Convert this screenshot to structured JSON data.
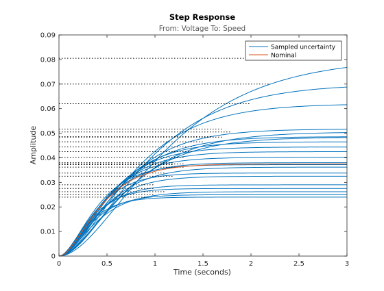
{
  "chart_data": {
    "type": "line",
    "title": "Step Response",
    "subtitle": "From: Voltage  To: Speed",
    "xlabel": "Time (seconds)",
    "ylabel": "Amplitude",
    "xlim": [
      0,
      3
    ],
    "ylim": [
      0,
      0.09
    ],
    "xticks": [
      "0",
      "0.5",
      "1",
      "1.5",
      "2",
      "2.5",
      "3"
    ],
    "yticks": [
      "0",
      "0.01",
      "0.02",
      "0.03",
      "0.04",
      "0.05",
      "0.06",
      "0.07",
      "0.08",
      "0.09"
    ],
    "grid": false,
    "legend_position": "top-right",
    "legend": [
      "Sampled uncertainty",
      "Nominal"
    ],
    "colors": {
      "sampled": "#0072BD",
      "nominal": "#D95319",
      "axis": "#262626",
      "steady_state_guide": "#000000"
    },
    "series": [
      {
        "name": "Sampled uncertainty",
        "responses": [
          {
            "final": 0.0805,
            "tau": 0.62,
            "settle_end": 2.5
          },
          {
            "final": 0.07,
            "tau": 0.5,
            "settle_end": 2.2
          },
          {
            "final": 0.062,
            "tau": 0.42,
            "settle_end": 2.0
          },
          {
            "final": 0.0517,
            "tau": 0.35,
            "settle_end": 1.7
          },
          {
            "final": 0.0505,
            "tau": 0.4,
            "settle_end": 1.8
          },
          {
            "final": 0.0486,
            "tau": 0.33,
            "settle_end": 1.6
          },
          {
            "final": 0.0484,
            "tau": 0.38,
            "settle_end": 1.7
          },
          {
            "final": 0.0465,
            "tau": 0.3,
            "settle_end": 1.5
          },
          {
            "final": 0.0444,
            "tau": 0.28,
            "settle_end": 1.4
          },
          {
            "final": 0.0425,
            "tau": 0.27,
            "settle_end": 1.4
          },
          {
            "final": 0.0402,
            "tau": 0.25,
            "settle_end": 1.3
          },
          {
            "final": 0.038,
            "tau": 0.24,
            "settle_end": 1.2
          },
          {
            "final": 0.0372,
            "tau": 0.22,
            "settle_end": 1.2
          },
          {
            "final": 0.0362,
            "tau": 0.26,
            "settle_end": 1.3
          },
          {
            "final": 0.0338,
            "tau": 0.21,
            "settle_end": 1.1
          },
          {
            "final": 0.0325,
            "tau": 0.23,
            "settle_end": 1.2
          },
          {
            "final": 0.029,
            "tau": 0.2,
            "settle_end": 1.0
          },
          {
            "final": 0.0275,
            "tau": 0.18,
            "settle_end": 1.0
          },
          {
            "final": 0.0262,
            "tau": 0.22,
            "settle_end": 1.1
          },
          {
            "final": 0.025,
            "tau": 0.19,
            "settle_end": 1.0
          },
          {
            "final": 0.024,
            "tau": 0.17,
            "settle_end": 0.9
          }
        ]
      },
      {
        "name": "Nominal",
        "responses": [
          {
            "final": 0.0375,
            "tau": 0.24,
            "settle_end": 1.3
          }
        ]
      }
    ]
  }
}
